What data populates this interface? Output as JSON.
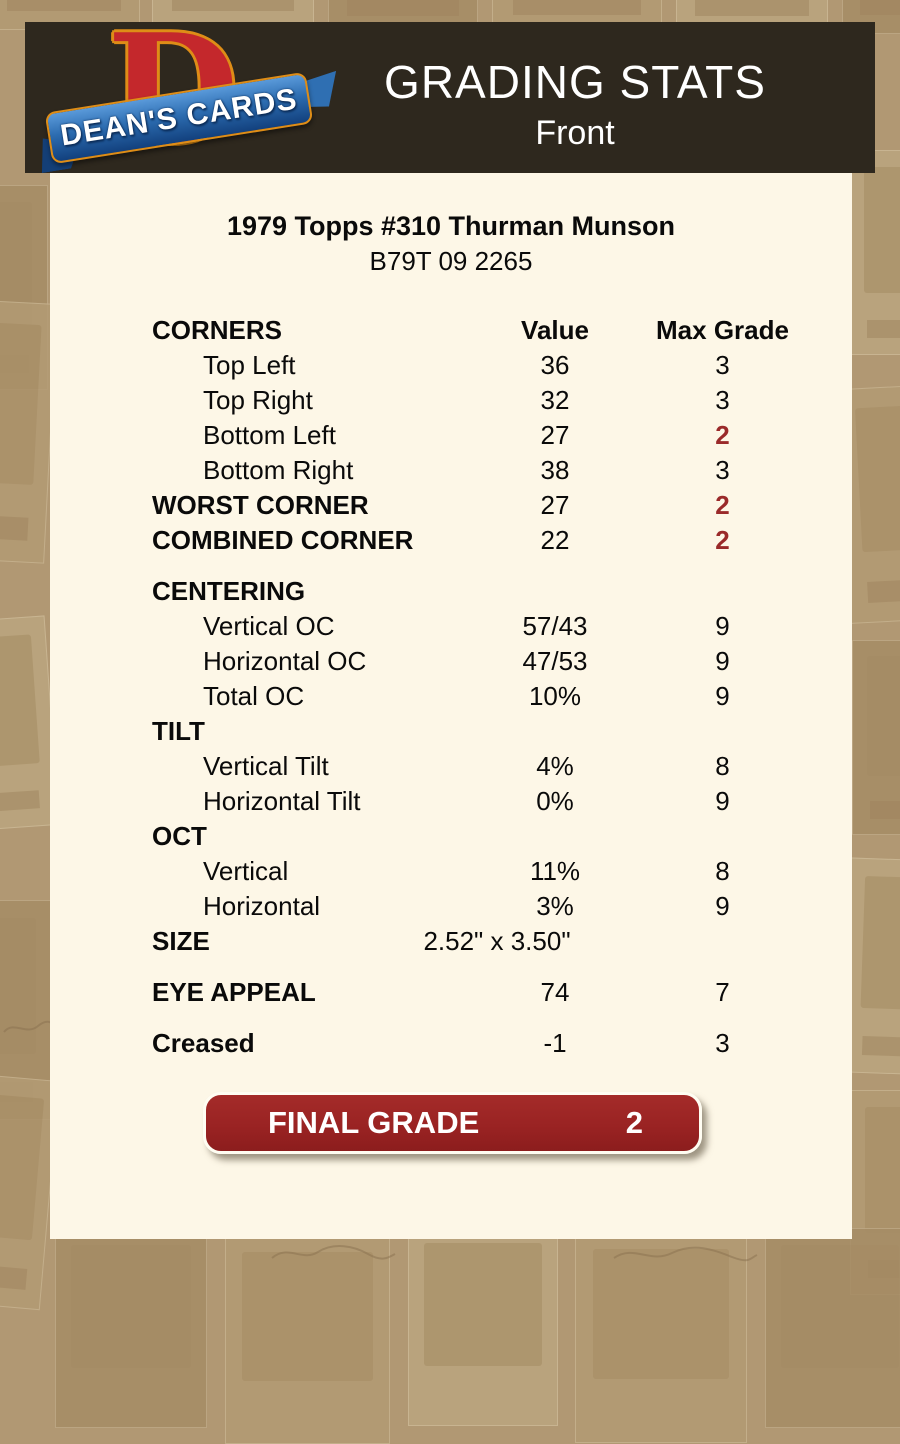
{
  "brand": {
    "logo_letter": "D",
    "logo_text": "DEAN'S CARDS"
  },
  "header": {
    "title": "GRADING STATS",
    "side": "Front"
  },
  "card": {
    "name": "1979 Topps #310 Thurman Munson",
    "serial": "B79T 09 2265"
  },
  "table": {
    "header": {
      "label": "CORNERS",
      "value_col": "Value",
      "grade_col": "Max Grade"
    },
    "rows": [
      {
        "label": "Top Left",
        "value": "36",
        "grade": "3",
        "indent": true
      },
      {
        "label": "Top Right",
        "value": "32",
        "grade": "3",
        "indent": true
      },
      {
        "label": "Bottom Left",
        "value": "27",
        "grade": "2",
        "indent": true,
        "red": true
      },
      {
        "label": "Bottom Right",
        "value": "38",
        "grade": "3",
        "indent": true
      },
      {
        "label": "WORST CORNER",
        "value": "27",
        "grade": "2",
        "bold": true,
        "red": true
      },
      {
        "label": "COMBINED CORNER",
        "value": "22",
        "grade": "2",
        "bold": true,
        "red": true,
        "gap_after": true
      },
      {
        "label": "CENTERING",
        "value": "",
        "grade": "",
        "bold": true
      },
      {
        "label": "Vertical OC",
        "value": "57/43",
        "grade": "9",
        "indent": true
      },
      {
        "label": "Horizontal OC",
        "value": "47/53",
        "grade": "9",
        "indent": true
      },
      {
        "label": "Total OC",
        "value": "10%",
        "grade": "9",
        "indent": true
      },
      {
        "label": "TILT",
        "value": "",
        "grade": "",
        "bold": true
      },
      {
        "label": "Vertical Tilt",
        "value": "4%",
        "grade": "8",
        "indent": true
      },
      {
        "label": "Horizontal Tilt",
        "value": "0%",
        "grade": "9",
        "indent": true
      },
      {
        "label": "OCT",
        "value": "",
        "grade": "",
        "bold": true
      },
      {
        "label": "Vertical",
        "value": "11%",
        "grade": "8",
        "indent": true
      },
      {
        "label": "Horizontal",
        "value": "3%",
        "grade": "9",
        "indent": true
      },
      {
        "label": "SIZE",
        "value": "2.52\" x 3.50\"",
        "grade": "",
        "bold": true,
        "size_row": true,
        "gap_after": true
      },
      {
        "label": "EYE APPEAL",
        "value": "74",
        "grade": "7",
        "bold": true,
        "gap_after": true
      },
      {
        "label": "Creased",
        "value": "-1",
        "grade": "3",
        "bold": true
      }
    ]
  },
  "final_grade": {
    "label": "FINAL GRADE",
    "value": "2"
  },
  "colors": {
    "page_bg": "#b19873",
    "panel_bg": "#fdf7e7",
    "header_bg": "#2e281e",
    "accent_red": "#9a2a2a",
    "button_red": "#9a2323",
    "logo_red": "#c4282c",
    "logo_gold": "#de8d17",
    "logo_blue": "#2c6cb0"
  }
}
